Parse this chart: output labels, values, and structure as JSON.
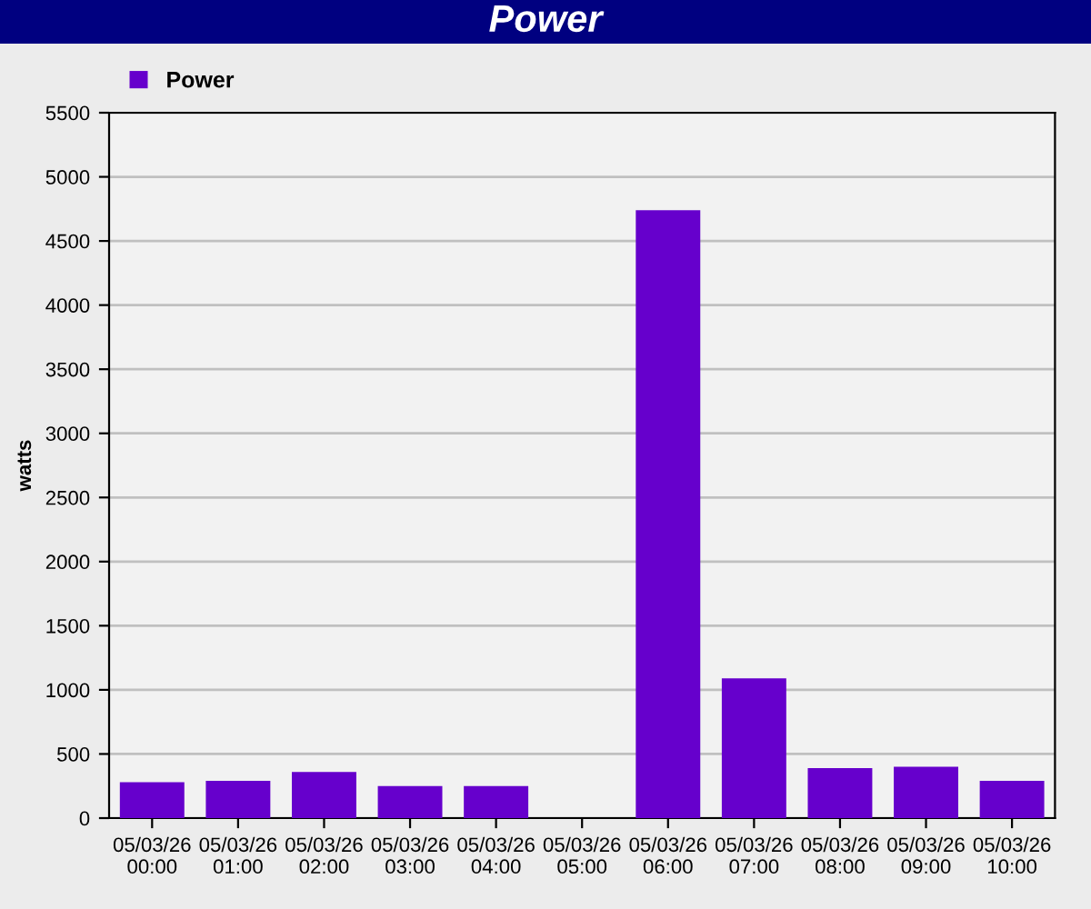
{
  "chart_data": {
    "type": "bar",
    "title": "Power",
    "ylabel": "watts",
    "categories": [
      "05/03/26\n00:00",
      "05/03/26\n01:00",
      "05/03/26\n02:00",
      "05/03/26\n03:00",
      "05/03/26\n04:00",
      "05/03/26\n05:00",
      "05/03/26\n06:00",
      "05/03/26\n07:00",
      "05/03/26\n08:00",
      "05/03/26\n09:00",
      "05/03/26\n10:00"
    ],
    "series": [
      {
        "name": "Power",
        "color": "#6600cc",
        "values": [
          280,
          290,
          360,
          250,
          250,
          0,
          4740,
          1090,
          390,
          400,
          290
        ]
      }
    ],
    "ylim": [
      0,
      5500
    ],
    "yticks": [
      0,
      500,
      1000,
      1500,
      2000,
      2500,
      3000,
      3500,
      4000,
      4500,
      5000,
      5500
    ],
    "grid": "y",
    "legend": "top left"
  }
}
